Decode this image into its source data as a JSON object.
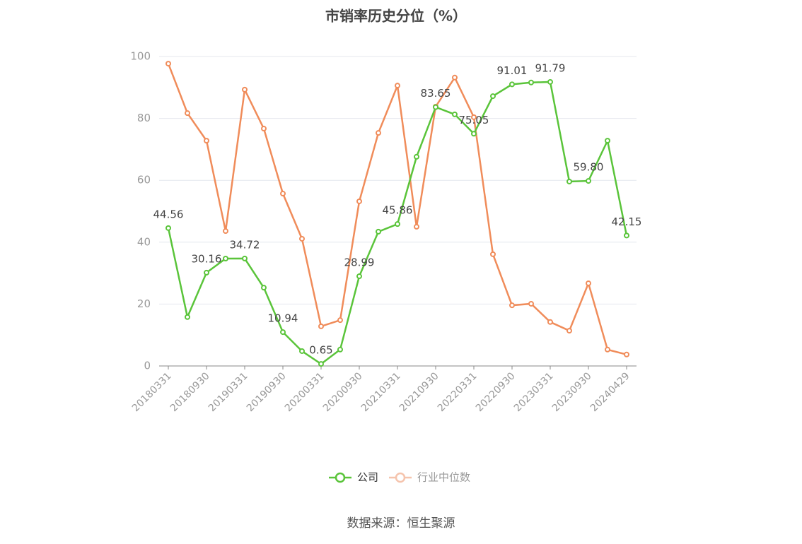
{
  "chart_data": {
    "type": "line",
    "title": "市销率历史分位（%）",
    "source": "数据来源：恒生聚源",
    "categories": [
      "20180331",
      null,
      "20180930",
      null,
      "20190331",
      null,
      "20190930",
      null,
      "20200331",
      null,
      "20200930",
      null,
      "20210331",
      null,
      "20210930",
      null,
      "20220331",
      null,
      "20220930",
      null,
      "20230331",
      null,
      "20230930",
      null,
      "20240429"
    ],
    "series": [
      {
        "name": "公司",
        "color": "#5ac43a",
        "values": [
          44.56,
          15.8,
          30.16,
          34.7,
          34.72,
          25.3,
          10.94,
          4.8,
          0.65,
          5.3,
          28.99,
          43.4,
          45.86,
          67.6,
          83.65,
          81.3,
          75.05,
          87.2,
          91.01,
          91.6,
          91.79,
          59.6,
          59.8,
          72.8,
          42.15
        ],
        "value_labels": [
          "44.56",
          null,
          "30.16",
          null,
          "34.72",
          null,
          "10.94",
          null,
          "0.65",
          null,
          "28.99",
          null,
          "45.86",
          null,
          "83.65",
          null,
          "75.05",
          null,
          "91.01",
          null,
          "91.79",
          null,
          "59.80",
          null,
          "42.15"
        ]
      },
      {
        "name": "行业中位数",
        "color": "#f08c5a",
        "values": [
          97.7,
          81.7,
          72.8,
          43.6,
          89.3,
          76.7,
          55.7,
          41.1,
          12.8,
          14.8,
          53.2,
          75.3,
          90.6,
          45.0,
          83.8,
          93.2,
          80.4,
          36.1,
          19.6,
          20.1,
          14.2,
          11.4,
          26.7,
          5.3,
          3.7
        ]
      }
    ],
    "ylim": [
      0,
      100
    ],
    "yticks": [
      0,
      20,
      40,
      60,
      80,
      100
    ],
    "grid": true
  }
}
